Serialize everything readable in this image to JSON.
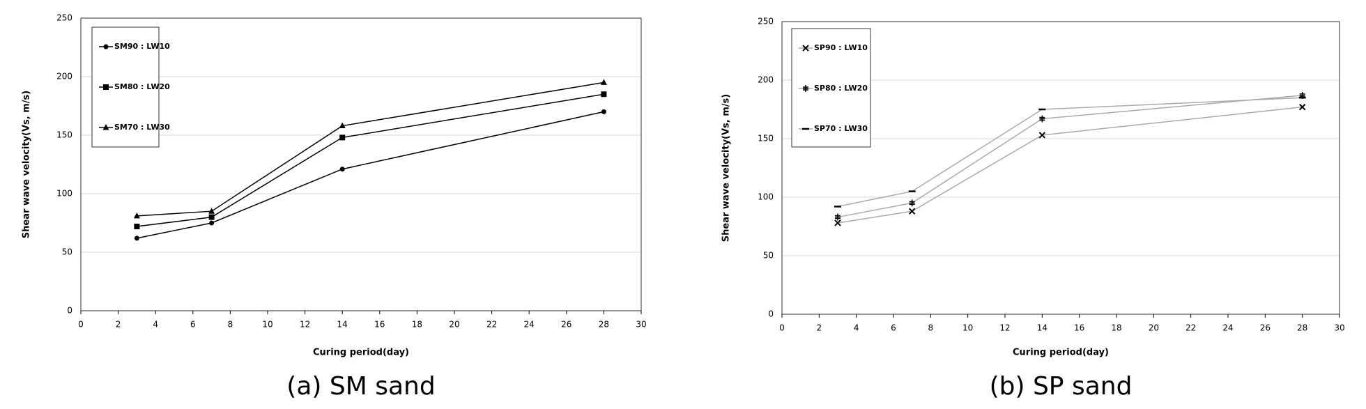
{
  "chart_data": [
    {
      "type": "line",
      "caption": "(a) SM sand",
      "xlabel": "Curing period(day)",
      "ylabel": "Shear wave velocity(Vs,  m/s)",
      "x": [
        3,
        7,
        14,
        28
      ],
      "series": [
        {
          "name": "SM90 : LW10",
          "color": "#000000",
          "marker": "circle",
          "values": [
            62,
            75,
            121,
            170
          ]
        },
        {
          "name": "SM80 : LW20",
          "color": "#000000",
          "marker": "square",
          "values": [
            72,
            80,
            148,
            185
          ]
        },
        {
          "name": "SM70 : LW30",
          "color": "#000000",
          "marker": "triangle",
          "values": [
            81,
            85,
            158,
            195
          ]
        }
      ],
      "xlim": [
        0,
        30
      ],
      "xticks": [
        0,
        2,
        4,
        6,
        8,
        10,
        12,
        14,
        16,
        18,
        20,
        22,
        24,
        26,
        28,
        30
      ],
      "ylim": [
        0,
        250
      ],
      "yticks": [
        0,
        50,
        100,
        150,
        200,
        250
      ],
      "grid": true
    },
    {
      "type": "line",
      "caption": "(b) SP sand",
      "xlabel": "Curing period(day)",
      "ylabel": "Shear wave velocity(Vs,  m/s)",
      "x": [
        3,
        7,
        14,
        28
      ],
      "series": [
        {
          "name": "SP90 : LW10",
          "color": "#aaaaaa",
          "marker": "x",
          "values": [
            78,
            88,
            153,
            177
          ]
        },
        {
          "name": "SP80 : LW20",
          "color": "#aaaaaa",
          "marker": "plus",
          "values": [
            83,
            95,
            167,
            187
          ]
        },
        {
          "name": "SP70 : LW30",
          "color": "#aaaaaa",
          "marker": "dash",
          "values": [
            92,
            105,
            175,
            185
          ]
        }
      ],
      "xlim": [
        0,
        30
      ],
      "xticks": [
        0,
        2,
        4,
        6,
        8,
        10,
        12,
        14,
        16,
        18,
        20,
        22,
        24,
        26,
        28,
        30
      ],
      "ylim": [
        0,
        250
      ],
      "yticks": [
        0,
        50,
        100,
        150,
        200,
        250
      ],
      "grid": true
    }
  ]
}
